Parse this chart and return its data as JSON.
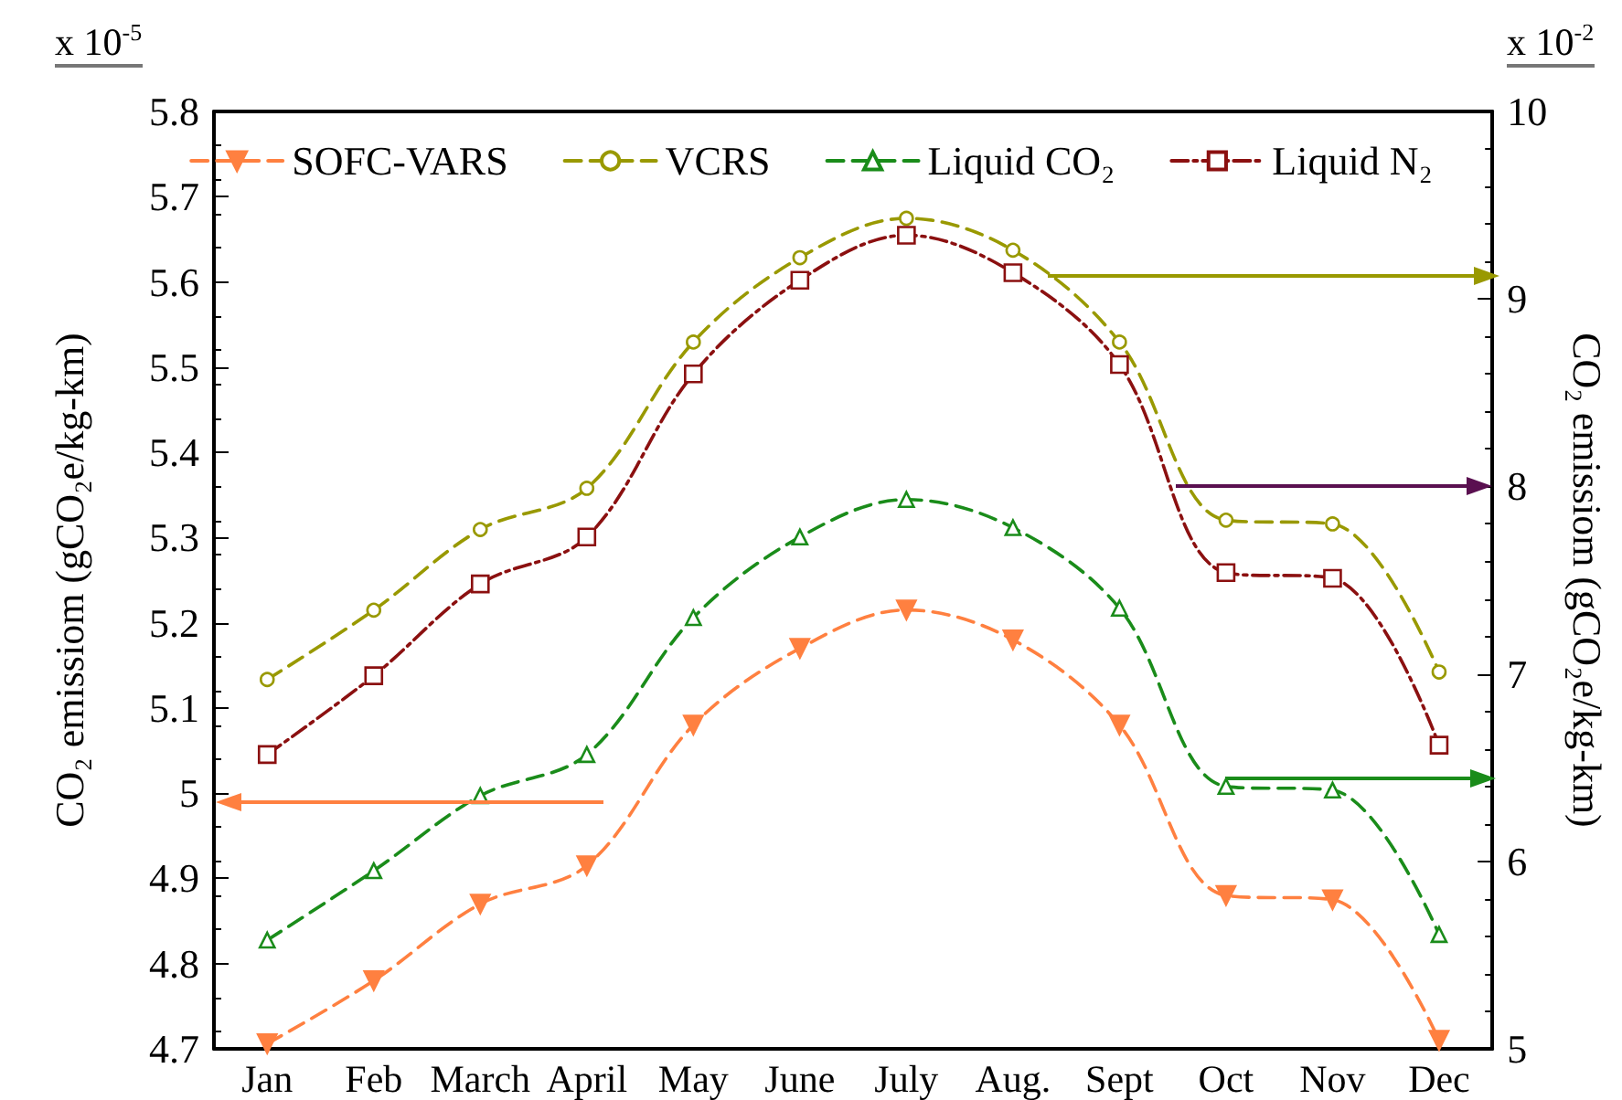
{
  "chart_data": {
    "type": "line",
    "categories": [
      "Jan",
      "Feb",
      "March",
      "April",
      "May",
      "June",
      "July",
      "Aug.",
      "Sept",
      "Oct",
      "Nov",
      "Dec"
    ],
    "ylabel": "CO₂ emissiom (gCO₂e/kg-km)",
    "y2label": "CO₂ emissiom (gCO₂e/kg-km)",
    "ylim": [
      4.7,
      5.8
    ],
    "yticks": [
      4.7,
      4.8,
      4.9,
      5,
      5.1,
      5.2,
      5.3,
      5.4,
      5.5,
      5.6,
      5.7,
      5.8
    ],
    "y2lim": [
      5,
      10
    ],
    "y2ticks": [
      5,
      6,
      7,
      8,
      9,
      10
    ],
    "annotations": [
      "x 10$^{-5}$",
      "x 10$^{-2}$"
    ],
    "legend": "top",
    "grid": false,
    "series": [
      {
        "name": "SOFC-VARS",
        "color": "#ff8040",
        "marker": "triangle-down",
        "line_style": "dashed",
        "values": [
          4.706,
          4.78,
          4.87,
          4.915,
          5.08,
          5.17,
          5.215,
          5.18,
          5.08,
          4.88,
          4.875,
          4.71
        ]
      },
      {
        "name": "VCRS",
        "color": "#999900",
        "marker": "circle",
        "line_style": "dashed",
        "axis": "y2",
        "values": [
          6.97,
          7.34,
          7.77,
          7.99,
          8.77,
          9.22,
          9.43,
          9.26,
          8.77,
          7.82,
          7.8,
          7.01
        ]
      },
      {
        "name": "Liquid CO₂",
        "color": "#1a8c1a",
        "marker": "triangle",
        "line_style": "dashed",
        "axis": "y2",
        "values": [
          5.58,
          5.95,
          6.35,
          6.57,
          7.3,
          7.73,
          7.93,
          7.78,
          7.35,
          6.4,
          6.38,
          5.61
        ]
      },
      {
        "name": "Liquid N₂",
        "color": "#8b1010",
        "marker": "square",
        "line_style": "dashdot",
        "axis": "y2",
        "values": [
          6.57,
          6.99,
          7.48,
          7.73,
          8.6,
          9.1,
          9.34,
          9.14,
          8.65,
          7.54,
          7.51,
          6.62
        ]
      }
    ]
  }
}
